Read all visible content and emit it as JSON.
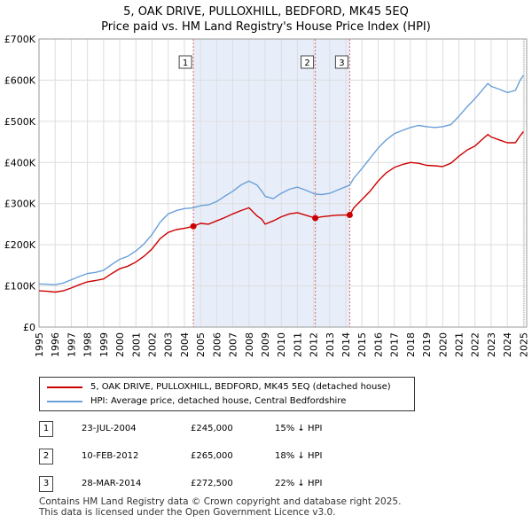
{
  "title_line1": "5, OAK DRIVE, PULLOXHILL, BEDFORD, MK45 5EQ",
  "title_line2": "Price paid vs. HM Land Registry's House Price Index (HPI)",
  "chart_data": {
    "type": "line",
    "title": "5, OAK DRIVE, PULLOXHILL, BEDFORD, MK45 5EQ — Price paid vs. HM Land Registry's House Price Index (HPI)",
    "xlabel": "",
    "ylabel": "",
    "xlim": [
      1995,
      2025.2
    ],
    "ylim": [
      0,
      700000
    ],
    "y_ticks": [
      0,
      100000,
      200000,
      300000,
      400000,
      500000,
      600000,
      700000
    ],
    "y_tick_labels": [
      "£0",
      "£100K",
      "£200K",
      "£300K",
      "£400K",
      "£500K",
      "£600K",
      "£700K"
    ],
    "x_ticks": [
      1995,
      1996,
      1997,
      1998,
      1999,
      2000,
      2001,
      2002,
      2003,
      2004,
      2005,
      2006,
      2007,
      2008,
      2009,
      2010,
      2011,
      2012,
      2013,
      2014,
      2015,
      2016,
      2017,
      2018,
      2019,
      2020,
      2021,
      2022,
      2023,
      2024,
      2025
    ],
    "x_tick_labels": [
      "1995",
      "1996",
      "1997",
      "1998",
      "1999",
      "2000",
      "2001",
      "2002",
      "2003",
      "2004",
      "2005",
      "2006",
      "2007",
      "2008",
      "2009",
      "2010",
      "2011",
      "2012",
      "2013",
      "2014",
      "2015",
      "2016",
      "2017",
      "2018",
      "2019",
      "2020",
      "2021",
      "2022",
      "2023",
      "2024",
      "2025"
    ],
    "grid": true,
    "shaded_span": [
      2004.55,
      2014.24
    ],
    "colors": {
      "property": "#cc0000",
      "hpi": "#6a9fd8",
      "shade": "#e8eef9",
      "grid": "#dddddd",
      "vline": "#dd6666"
    },
    "series": [
      {
        "name": "5, OAK DRIVE, PULLOXHILL, BEDFORD, MK45 5EQ (detached house)",
        "color": "#cc0000",
        "x": [
          1995,
          1995.5,
          1996,
          1996.5,
          1997,
          1997.5,
          1998,
          1998.5,
          1999,
          1999.5,
          2000,
          2000.5,
          2001,
          2001.5,
          2002,
          2002.5,
          2003,
          2003.5,
          2004,
          2004.56,
          2005,
          2005.5,
          2006,
          2006.5,
          2007,
          2007.5,
          2008,
          2008.5,
          2008.8,
          2009,
          2009.5,
          2010,
          2010.5,
          2011,
          2011.5,
          2012.11,
          2012.5,
          2013,
          2013.5,
          2014.24,
          2014.5,
          2015,
          2015.5,
          2016,
          2016.5,
          2017,
          2017.5,
          2018,
          2018.5,
          2019,
          2019.5,
          2020,
          2020.5,
          2021,
          2021.5,
          2022,
          2022.5,
          2022.8,
          2023,
          2023.5,
          2024,
          2024.5,
          2024.8,
          2025
        ],
        "y": [
          88000,
          87000,
          85000,
          88000,
          95000,
          103000,
          110000,
          113000,
          117000,
          130000,
          142000,
          148000,
          158000,
          172000,
          190000,
          215000,
          230000,
          237000,
          240000,
          245000,
          252000,
          250000,
          258000,
          266000,
          275000,
          283000,
          290000,
          270000,
          262000,
          250000,
          258000,
          268000,
          275000,
          278000,
          272000,
          265000,
          268000,
          270000,
          272000,
          272500,
          290000,
          310000,
          330000,
          355000,
          375000,
          388000,
          395000,
          400000,
          398000,
          393000,
          392000,
          390000,
          398000,
          415000,
          430000,
          440000,
          458000,
          468000,
          462000,
          455000,
          448000,
          448000,
          465000,
          475000
        ]
      },
      {
        "name": "HPI: Average price, detached house, Central Bedfordshire",
        "color": "#6a9fd8",
        "x": [
          1995,
          1995.5,
          1996,
          1996.5,
          1997,
          1997.5,
          1998,
          1998.5,
          1999,
          1999.5,
          2000,
          2000.5,
          2001,
          2001.5,
          2002,
          2002.5,
          2003,
          2003.5,
          2004,
          2004.56,
          2005,
          2005.5,
          2006,
          2006.5,
          2007,
          2007.5,
          2008,
          2008.5,
          2008.8,
          2009,
          2009.5,
          2010,
          2010.5,
          2011,
          2011.5,
          2012.11,
          2012.5,
          2013,
          2013.5,
          2014.24,
          2014.5,
          2015,
          2015.5,
          2016,
          2016.5,
          2017,
          2017.5,
          2018,
          2018.5,
          2019,
          2019.5,
          2020,
          2020.5,
          2021,
          2021.5,
          2022,
          2022.5,
          2022.8,
          2023,
          2023.5,
          2024,
          2024.5,
          2024.8,
          2025
        ],
        "y": [
          105000,
          104000,
          103000,
          107000,
          115000,
          123000,
          130000,
          133000,
          138000,
          152000,
          165000,
          172000,
          185000,
          202000,
          225000,
          255000,
          275000,
          283000,
          288000,
          290000,
          295000,
          297000,
          305000,
          318000,
          330000,
          345000,
          355000,
          345000,
          330000,
          318000,
          312000,
          325000,
          335000,
          340000,
          333000,
          323000,
          322000,
          325000,
          333000,
          345000,
          362000,
          385000,
          410000,
          435000,
          455000,
          470000,
          478000,
          485000,
          490000,
          487000,
          485000,
          487000,
          492000,
          512000,
          535000,
          555000,
          578000,
          592000,
          585000,
          578000,
          570000,
          575000,
          600000,
          612000
        ]
      }
    ],
    "sales": [
      {
        "label": "1",
        "x": 2004.56,
        "y": 245000
      },
      {
        "label": "2",
        "x": 2012.11,
        "y": 265000
      },
      {
        "label": "3",
        "x": 2014.24,
        "y": 272500
      }
    ]
  },
  "legend": {
    "property_label": "5, OAK DRIVE, PULLOXHILL, BEDFORD, MK45 5EQ (detached house)",
    "hpi_label": "HPI: Average price, detached house, Central Bedfordshire"
  },
  "transactions": [
    {
      "num": "1",
      "date": "23-JUL-2004",
      "price": "£245,000",
      "hpi": "15% ↓ HPI"
    },
    {
      "num": "2",
      "date": "10-FEB-2012",
      "price": "£265,000",
      "hpi": "18% ↓ HPI"
    },
    {
      "num": "3",
      "date": "28-MAR-2014",
      "price": "£272,500",
      "hpi": "22% ↓ HPI"
    }
  ],
  "footer_line1": "Contains HM Land Registry data © Crown copyright and database right 2025.",
  "footer_line2": "This data is licensed under the Open Government Licence v3.0."
}
